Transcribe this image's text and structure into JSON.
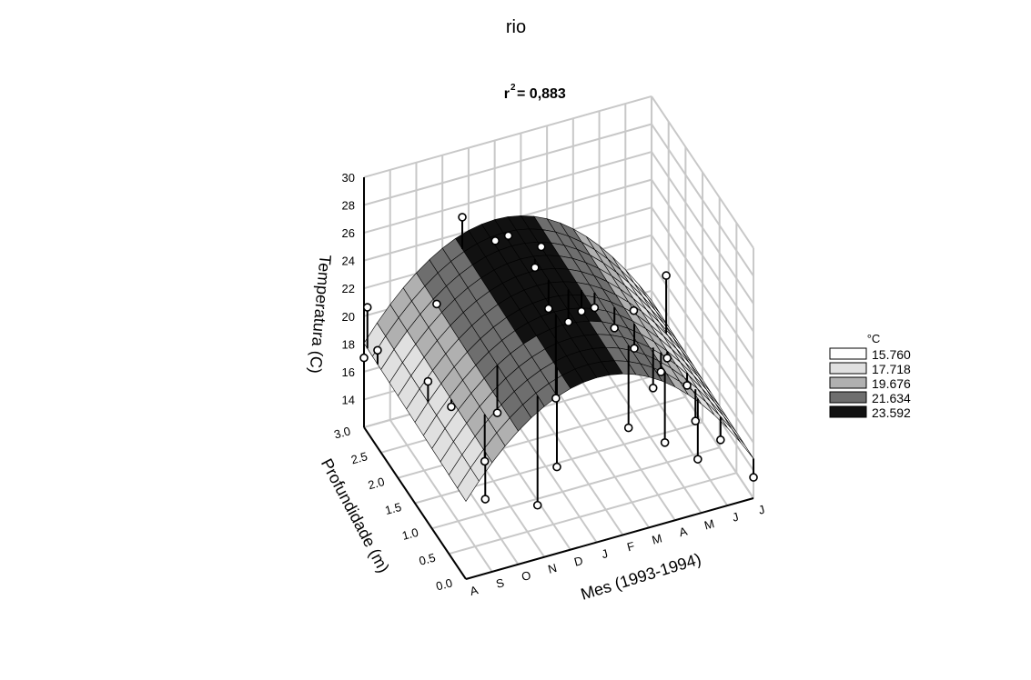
{
  "chart_data": {
    "type": "surface3d",
    "title": "rio",
    "subtitle_prefix": "r",
    "subtitle_sup": "2",
    "subtitle_value": "= 0,883",
    "xlabel": "Mes (1993-1994)",
    "ylabel": "Profundidade (m)",
    "zlabel": "Temperatura (C)",
    "x_ticks": [
      "A",
      "S",
      "O",
      "N",
      "D",
      "J",
      "F",
      "M",
      "A",
      "M",
      "J",
      "J"
    ],
    "y_ticks": [
      "0.0",
      "0.5",
      "1.0",
      "1.5",
      "2.0",
      "2.5",
      "3.0"
    ],
    "z_ticks": [
      "14",
      "16",
      "18",
      "20",
      "22",
      "24",
      "26",
      "28",
      "30"
    ],
    "zlim": [
      12,
      30
    ],
    "ylim": [
      0,
      3
    ],
    "grid": true,
    "legend": {
      "title": "°C",
      "position": "right",
      "levels": [
        {
          "value": "15.760",
          "color": "#ffffff"
        },
        {
          "value": "17.718",
          "color": "#e0e0e0"
        },
        {
          "value": "19.676",
          "color": "#b0b0b0"
        },
        {
          "value": "21.634",
          "color": "#6e6e6e"
        },
        {
          "value": "23.592",
          "color": "#111111"
        }
      ]
    },
    "points": [
      [
        0,
        2.6,
        19
      ],
      [
        0,
        2.9,
        21
      ],
      [
        0,
        3.0,
        17
      ],
      [
        0.5,
        1.5,
        20.5
      ],
      [
        1,
        0.2,
        16.5
      ],
      [
        1,
        1.2,
        19.5
      ],
      [
        1.5,
        0.6,
        17.5
      ],
      [
        2,
        2.4,
        22
      ],
      [
        2.5,
        1.0,
        19
      ],
      [
        3,
        0.2,
        15
      ],
      [
        3.5,
        2.8,
        26
      ],
      [
        4,
        0.4,
        16.5
      ],
      [
        4.5,
        2.6,
        24.5
      ],
      [
        5,
        1.2,
        18
      ],
      [
        5,
        2.6,
        24.6
      ],
      [
        5.5,
        2.2,
        23.5
      ],
      [
        5.5,
        1.8,
        22
      ],
      [
        6,
        2.4,
        24
      ],
      [
        6,
        1.6,
        21.5
      ],
      [
        6.5,
        1.6,
        22
      ],
      [
        7,
        0.6,
        17
      ],
      [
        7,
        1.6,
        22
      ],
      [
        7.5,
        1.4,
        21
      ],
      [
        8,
        1.2,
        20
      ],
      [
        8,
        0.3,
        16.5
      ],
      [
        8.5,
        1.6,
        21
      ],
      [
        8.5,
        0.8,
        19.5
      ],
      [
        9,
        1.0,
        19.5
      ],
      [
        9,
        0.1,
        15.5
      ],
      [
        9.5,
        0.8,
        18
      ],
      [
        10,
        1.8,
        22
      ],
      [
        10,
        0.2,
        16
      ],
      [
        11,
        0.0,
        13.5
      ],
      [
        8.2,
        0.8,
        18.5
      ],
      [
        9.3,
        0.4,
        17
      ]
    ]
  }
}
